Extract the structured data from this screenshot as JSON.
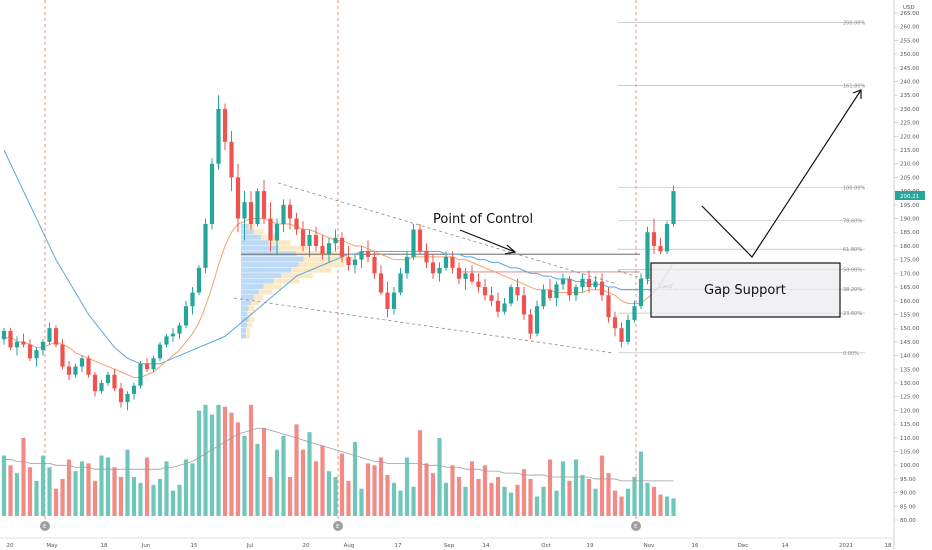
{
  "chart_data": {
    "type": "candlestick",
    "currency": "USD",
    "ylim": [
      80,
      265
    ],
    "y_ticks": [
      "265.00",
      "260.00",
      "255.00",
      "250.00",
      "245.00",
      "240.00",
      "235.00",
      "230.00",
      "225.00",
      "220.00",
      "215.00",
      "210.00",
      "205.00",
      "200.00",
      "195.00",
      "190.00",
      "185.00",
      "180.00",
      "175.00",
      "170.00",
      "165.00",
      "160.00",
      "155.00",
      "150.00",
      "145.00",
      "140.00",
      "135.00",
      "130.00",
      "125.00",
      "120.00",
      "115.00",
      "110.00",
      "105.00",
      "100.00",
      "95.00",
      "90.00",
      "85.00",
      "80.00"
    ],
    "last_price_label": "200.21",
    "x_tick_labels": [
      "20",
      "May",
      "18",
      "Jun",
      "15",
      "Jul",
      "20",
      "Aug",
      "17",
      "Sep",
      "14",
      "Oct",
      "19",
      "Nov",
      "16",
      "Dec",
      "14",
      "2021",
      "18"
    ],
    "earnings_markers": [
      "E",
      "E",
      "E"
    ],
    "fib_levels": [
      {
        "label": "0.00%",
        "price": 141
      },
      {
        "label": "23.60%",
        "price": 155.5
      },
      {
        "label": "38.20%",
        "price": 164.2
      },
      {
        "label": "50.00%",
        "price": 171.4
      },
      {
        "label": "61.80%",
        "price": 178.8
      },
      {
        "label": "78.60%",
        "price": 189.3
      },
      {
        "label": "100.00%",
        "price": 201.3
      },
      {
        "label": "161.80%",
        "price": 238.6
      },
      {
        "label": "200.00%",
        "price": 261.5
      }
    ],
    "annotations": {
      "poc": "Point of Control",
      "gap": "Gap Support"
    },
    "candles": [
      [
        146,
        150,
        144,
        149
      ],
      [
        149,
        150,
        142,
        143
      ],
      [
        143,
        147,
        140,
        145
      ],
      [
        145,
        148,
        143,
        144
      ],
      [
        144,
        146,
        138,
        139
      ],
      [
        139,
        143,
        136,
        142
      ],
      [
        142,
        146,
        140,
        145
      ],
      [
        145,
        152,
        144,
        150
      ],
      [
        150,
        151,
        143,
        144
      ],
      [
        144,
        146,
        135,
        136
      ],
      [
        136,
        138,
        131,
        133
      ],
      [
        133,
        137,
        132,
        136
      ],
      [
        136,
        140,
        134,
        139
      ],
      [
        139,
        140,
        132,
        133
      ],
      [
        133,
        134,
        125,
        127
      ],
      [
        127,
        131,
        126,
        130
      ],
      [
        130,
        134,
        129,
        133
      ],
      [
        133,
        135,
        127,
        128
      ],
      [
        128,
        130,
        121,
        123
      ],
      [
        123,
        127,
        120,
        126
      ],
      [
        126,
        130,
        124,
        129
      ],
      [
        129,
        138,
        128,
        137
      ],
      [
        137,
        139,
        134,
        135
      ],
      [
        135,
        140,
        134,
        139
      ],
      [
        139,
        145,
        138,
        144
      ],
      [
        144,
        148,
        143,
        147
      ],
      [
        147,
        150,
        145,
        148
      ],
      [
        148,
        152,
        146,
        151
      ],
      [
        151,
        160,
        150,
        158
      ],
      [
        158,
        165,
        155,
        163
      ],
      [
        163,
        173,
        162,
        172
      ],
      [
        172,
        190,
        170,
        188
      ],
      [
        188,
        212,
        186,
        210
      ],
      [
        210,
        235,
        208,
        230
      ],
      [
        230,
        232,
        215,
        218
      ],
      [
        218,
        222,
        200,
        205
      ],
      [
        205,
        210,
        185,
        190
      ],
      [
        190,
        200,
        182,
        196
      ],
      [
        196,
        200,
        186,
        188
      ],
      [
        188,
        201,
        187,
        200
      ],
      [
        200,
        204,
        188,
        190
      ],
      [
        190,
        196,
        178,
        182
      ],
      [
        182,
        190,
        177,
        188
      ],
      [
        188,
        197,
        185,
        195
      ],
      [
        195,
        197,
        186,
        190
      ],
      [
        190,
        192,
        184,
        186
      ],
      [
        186,
        189,
        178,
        180
      ],
      [
        180,
        186,
        176,
        184
      ],
      [
        184,
        187,
        178,
        180
      ],
      [
        180,
        184,
        175,
        177
      ],
      [
        177,
        183,
        174,
        181
      ],
      [
        181,
        186,
        178,
        183
      ],
      [
        183,
        185,
        174,
        176
      ],
      [
        176,
        180,
        171,
        173
      ],
      [
        173,
        177,
        170,
        175
      ],
      [
        175,
        180,
        172,
        178
      ],
      [
        178,
        182,
        174,
        176
      ],
      [
        176,
        178,
        168,
        170
      ],
      [
        170,
        173,
        162,
        163
      ],
      [
        163,
        167,
        154,
        157
      ],
      [
        157,
        165,
        155,
        163
      ],
      [
        163,
        172,
        162,
        170
      ],
      [
        170,
        178,
        168,
        176
      ],
      [
        176,
        188,
        175,
        186
      ],
      [
        186,
        188,
        177,
        178
      ],
      [
        178,
        181,
        172,
        174
      ],
      [
        174,
        177,
        168,
        170
      ],
      [
        170,
        174,
        167,
        172
      ],
      [
        172,
        178,
        171,
        176
      ],
      [
        176,
        178,
        170,
        172
      ],
      [
        172,
        174,
        166,
        168
      ],
      [
        168,
        172,
        164,
        170
      ],
      [
        170,
        173,
        166,
        167
      ],
      [
        167,
        170,
        163,
        165
      ],
      [
        165,
        168,
        160,
        162
      ],
      [
        162,
        165,
        158,
        160
      ],
      [
        160,
        163,
        154,
        156
      ],
      [
        156,
        161,
        155,
        159
      ],
      [
        159,
        166,
        158,
        165
      ],
      [
        165,
        168,
        160,
        162
      ],
      [
        162,
        165,
        153,
        155
      ],
      [
        155,
        157,
        146,
        148
      ],
      [
        148,
        160,
        147,
        158
      ],
      [
        158,
        166,
        157,
        164
      ],
      [
        164,
        168,
        160,
        161
      ],
      [
        161,
        167,
        158,
        166
      ],
      [
        166,
        170,
        164,
        168
      ],
      [
        168,
        169,
        160,
        162
      ],
      [
        162,
        166,
        160,
        165
      ],
      [
        165,
        170,
        163,
        168
      ],
      [
        168,
        171,
        163,
        165
      ],
      [
        165,
        169,
        164,
        167
      ],
      [
        167,
        170,
        160,
        162
      ],
      [
        162,
        165,
        152,
        154
      ],
      [
        154,
        156,
        147,
        150
      ],
      [
        150,
        152,
        143,
        145
      ],
      [
        145,
        155,
        144,
        153
      ],
      [
        153,
        160,
        152,
        158
      ],
      [
        158,
        170,
        157,
        168
      ],
      [
        168,
        187,
        166,
        185
      ],
      [
        185,
        190,
        177,
        180
      ],
      [
        180,
        183,
        177,
        178
      ],
      [
        178,
        189,
        177,
        188
      ],
      [
        188,
        202,
        187,
        200
      ]
    ],
    "volume": [
      31,
      26,
      22,
      40,
      25,
      18,
      31,
      25,
      14,
      19,
      29,
      23,
      28,
      27,
      18,
      31,
      30,
      25,
      20,
      34,
      20,
      17,
      30,
      16,
      19,
      28,
      13,
      16,
      29,
      27,
      54,
      57,
      52,
      57,
      56,
      53,
      48,
      41,
      57,
      37,
      45,
      20,
      34,
      41,
      20,
      47,
      34,
      43,
      28,
      36,
      23,
      20,
      32,
      18,
      38,
      14,
      27,
      26,
      30,
      21,
      17,
      13,
      30,
      15,
      44,
      27,
      22,
      40,
      17,
      26,
      20,
      15,
      28,
      19,
      26,
      17,
      20,
      15,
      12,
      16,
      24,
      19,
      10,
      15,
      29,
      13,
      28,
      18,
      29,
      21,
      19,
      14,
      31,
      22,
      13,
      10,
      14,
      20,
      33,
      17,
      15,
      11,
      10,
      9
    ],
    "ma_short": [
      146,
      147,
      145,
      145,
      144,
      143,
      143,
      144,
      145,
      144,
      143,
      141,
      140,
      139,
      138,
      137,
      136,
      135,
      134,
      133,
      132,
      132,
      133,
      134,
      136,
      138,
      140,
      142,
      145,
      148,
      152,
      158,
      165,
      173,
      180,
      185,
      188,
      189,
      190,
      190,
      190,
      189,
      188,
      188,
      188,
      187,
      186,
      186,
      185,
      184,
      183,
      182,
      182,
      181,
      180,
      180,
      179,
      178,
      177,
      176,
      175,
      175,
      175,
      176,
      176,
      176,
      176,
      176,
      176,
      176,
      175,
      175,
      174,
      173,
      172,
      171,
      170,
      169,
      168,
      167,
      166,
      165,
      164,
      164,
      164,
      163,
      163,
      163,
      163,
      163,
      164,
      164,
      164,
      163,
      162,
      160,
      159,
      159,
      159,
      161,
      163,
      166,
      170,
      174
    ],
    "ma_long": [
      215,
      210,
      205,
      200,
      195,
      190,
      185,
      180,
      175,
      171,
      167,
      163,
      159,
      155,
      152,
      149,
      146,
      143,
      141,
      139,
      138,
      137,
      137,
      137,
      137,
      138,
      139,
      140,
      141,
      142,
      143,
      144,
      145,
      146,
      147,
      149,
      151,
      153,
      155,
      157,
      159,
      161,
      163,
      165,
      167,
      169,
      170,
      171,
      172,
      173,
      174,
      175,
      176,
      177,
      177,
      178,
      178,
      178,
      178,
      178,
      178,
      178,
      178,
      178,
      178,
      178,
      178,
      178,
      177,
      177,
      177,
      176,
      176,
      175,
      175,
      174,
      174,
      173,
      172,
      172,
      171,
      170,
      170,
      169,
      169,
      168,
      168,
      168,
      167,
      167,
      166,
      166,
      166,
      165,
      165,
      164,
      164,
      164,
      164,
      164,
      164,
      165,
      165,
      166
    ],
    "volume_ma": [
      29,
      29,
      28,
      28,
      27,
      27,
      27,
      27,
      26,
      26,
      26,
      25,
      25,
      25,
      24,
      24,
      24,
      24,
      24,
      24,
      24,
      24,
      24,
      24,
      24,
      25,
      25,
      26,
      27,
      28,
      30,
      32,
      34,
      36,
      38,
      40,
      42,
      43,
      44,
      45,
      45,
      44,
      43,
      42,
      41,
      40,
      39,
      38,
      37,
      36,
      35,
      34,
      33,
      32,
      31,
      30,
      29,
      28,
      28,
      27,
      27,
      27,
      27,
      27,
      27,
      26,
      26,
      26,
      25,
      25,
      25,
      24,
      24,
      24,
      23,
      23,
      23,
      22,
      22,
      22,
      21,
      21,
      21,
      21,
      20,
      20,
      20,
      20,
      20,
      20,
      20,
      19,
      19,
      19,
      19,
      18,
      18,
      18,
      18,
      18,
      18,
      18,
      18,
      18
    ],
    "volume_profile": [
      {
        "price": 187,
        "w": 6
      },
      {
        "price": 185,
        "w": 10
      },
      {
        "price": 183,
        "w": 16
      },
      {
        "price": 181,
        "w": 22
      },
      {
        "price": 179,
        "w": 30
      },
      {
        "price": 177,
        "w": 44
      },
      {
        "price": 175,
        "w": 50
      },
      {
        "price": 173,
        "w": 46
      },
      {
        "price": 171,
        "w": 40
      },
      {
        "price": 169,
        "w": 32
      },
      {
        "price": 167,
        "w": 26
      },
      {
        "price": 165,
        "w": 18
      },
      {
        "price": 163,
        "w": 14
      },
      {
        "price": 161,
        "w": 10
      },
      {
        "price": 159,
        "w": 8
      },
      {
        "price": 157,
        "w": 6
      },
      {
        "price": 155,
        "w": 5
      },
      {
        "price": 153,
        "w": 6
      },
      {
        "price": 151,
        "w": 5
      },
      {
        "price": 149,
        "w": 4
      },
      {
        "price": 147,
        "w": 4
      }
    ],
    "colors": {
      "up": "#26a69a",
      "down": "#ef5350",
      "vol_up": "#70c7b9",
      "vol_down": "#f28b86",
      "ma_short": "#f4a26a",
      "ma_long": "#5aa7dd",
      "grid": "#cccccc",
      "separator": "#e57373",
      "channel": "#888888",
      "gap_box_fill": "#ececf0",
      "profile_up": "#bcd9f5",
      "profile_down": "#fbe8c5",
      "poc_line": "#555555",
      "resistance": "#e57373"
    }
  }
}
